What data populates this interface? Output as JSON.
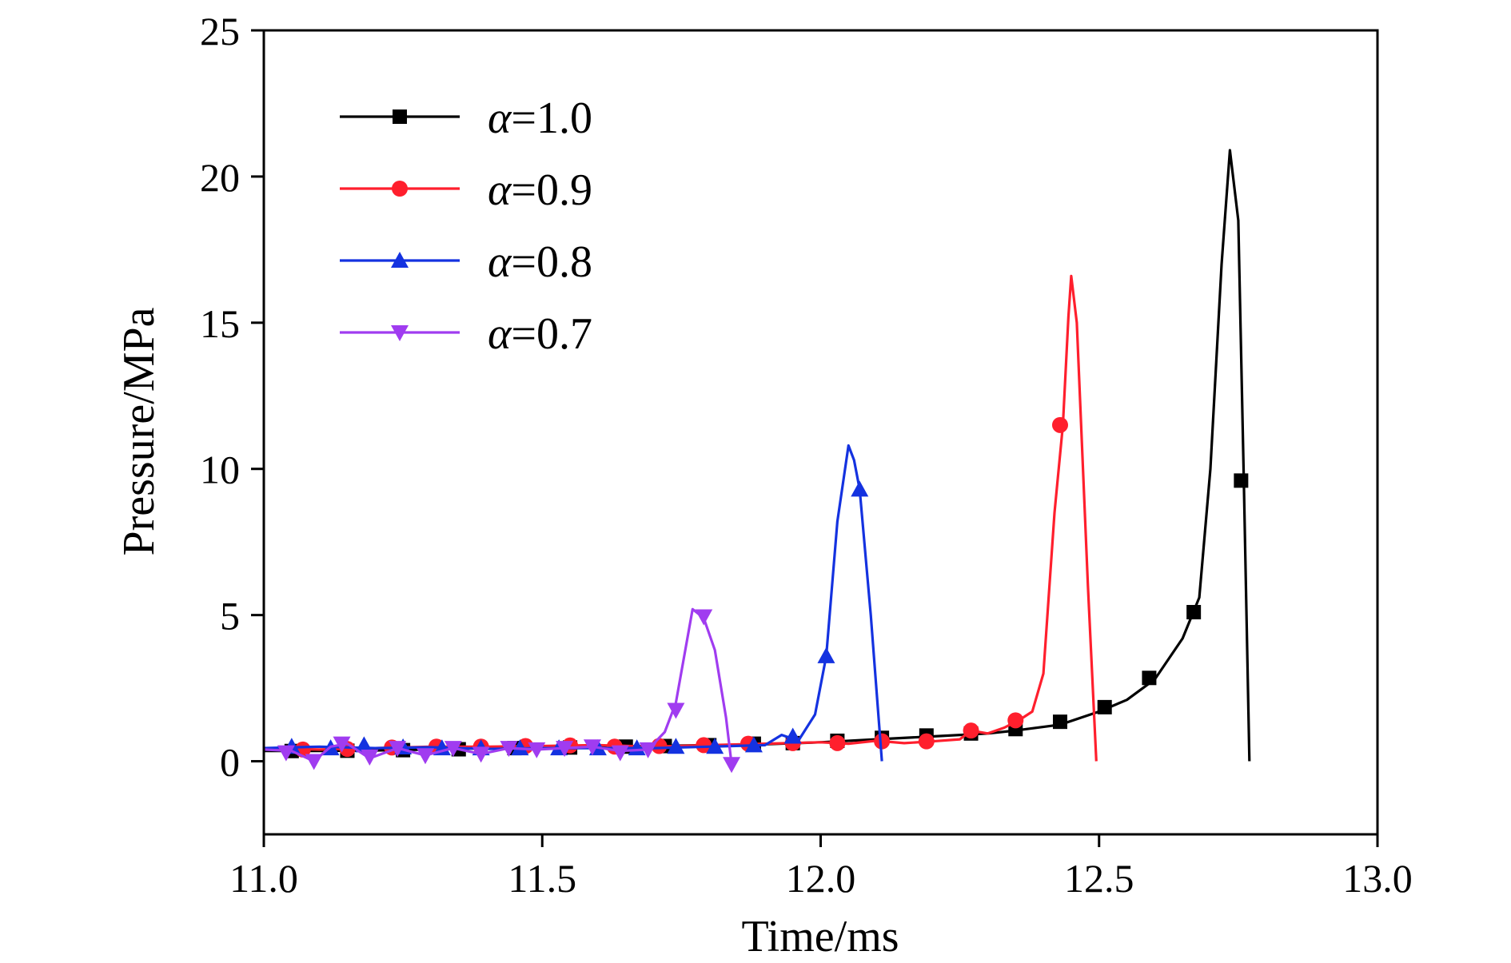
{
  "chart_data": {
    "type": "line",
    "xlabel": "Time/ms",
    "ylabel": "Pressure/MPa",
    "xlim": [
      11.0,
      13.0
    ],
    "ylim": [
      -2.5,
      25
    ],
    "xticks": [
      "11.0",
      "11.5",
      "12.0",
      "12.5",
      "13.0"
    ],
    "yticks": [
      "0",
      "5",
      "10",
      "15",
      "20",
      "25"
    ],
    "legend_position": "top-left",
    "grid": false,
    "series": [
      {
        "name": "α=1.0",
        "color": "#000000",
        "marker": "square",
        "line": [
          [
            11.0,
            0.35
          ],
          [
            11.1,
            0.35
          ],
          [
            11.2,
            0.37
          ],
          [
            11.3,
            0.4
          ],
          [
            11.4,
            0.45
          ],
          [
            11.5,
            0.48
          ],
          [
            11.6,
            0.5
          ],
          [
            11.7,
            0.52
          ],
          [
            11.8,
            0.55
          ],
          [
            11.9,
            0.58
          ],
          [
            12.0,
            0.65
          ],
          [
            12.1,
            0.75
          ],
          [
            12.2,
            0.85
          ],
          [
            12.3,
            0.95
          ],
          [
            12.35,
            1.05
          ],
          [
            12.43,
            1.25
          ],
          [
            12.5,
            1.7
          ],
          [
            12.55,
            2.1
          ],
          [
            12.6,
            2.8
          ],
          [
            12.65,
            4.2
          ],
          [
            12.68,
            5.6
          ],
          [
            12.7,
            10.0
          ],
          [
            12.72,
            17.0
          ],
          [
            12.735,
            20.9
          ],
          [
            12.75,
            18.5
          ],
          [
            12.76,
            9.6
          ],
          [
            12.77,
            0.0
          ]
        ],
        "markers": [
          [
            11.05,
            0.35
          ],
          [
            11.15,
            0.36
          ],
          [
            11.25,
            0.38
          ],
          [
            11.35,
            0.41
          ],
          [
            11.45,
            0.45
          ],
          [
            11.55,
            0.47
          ],
          [
            11.65,
            0.5
          ],
          [
            11.72,
            0.52
          ],
          [
            11.8,
            0.55
          ],
          [
            11.88,
            0.6
          ],
          [
            11.95,
            0.62
          ],
          [
            12.03,
            0.7
          ],
          [
            12.11,
            0.8
          ],
          [
            12.19,
            0.88
          ],
          [
            12.27,
            0.95
          ],
          [
            12.35,
            1.1
          ],
          [
            12.43,
            1.35
          ],
          [
            12.51,
            1.85
          ],
          [
            12.59,
            2.85
          ],
          [
            12.67,
            5.1
          ],
          [
            12.755,
            9.6
          ]
        ]
      },
      {
        "name": "α=0.9",
        "color": "#ff1f2d",
        "marker": "circle",
        "line": [
          [
            11.0,
            0.45
          ],
          [
            11.1,
            0.4
          ],
          [
            11.2,
            0.45
          ],
          [
            11.3,
            0.5
          ],
          [
            11.4,
            0.5
          ],
          [
            11.5,
            0.52
          ],
          [
            11.6,
            0.55
          ],
          [
            11.7,
            0.5
          ],
          [
            11.8,
            0.55
          ],
          [
            11.9,
            0.6
          ],
          [
            12.0,
            0.65
          ],
          [
            12.05,
            0.6
          ],
          [
            12.1,
            0.7
          ],
          [
            12.15,
            0.62
          ],
          [
            12.2,
            0.68
          ],
          [
            12.25,
            0.75
          ],
          [
            12.27,
            1.05
          ],
          [
            12.3,
            0.95
          ],
          [
            12.33,
            1.15
          ],
          [
            12.36,
            1.45
          ],
          [
            12.38,
            1.7
          ],
          [
            12.4,
            3.0
          ],
          [
            12.42,
            8.5
          ],
          [
            12.435,
            11.5
          ],
          [
            12.445,
            15.2
          ],
          [
            12.45,
            16.6
          ],
          [
            12.46,
            15.0
          ],
          [
            12.48,
            6.0
          ],
          [
            12.495,
            0.0
          ]
        ],
        "markers": [
          [
            11.07,
            0.4
          ],
          [
            11.15,
            0.42
          ],
          [
            11.23,
            0.47
          ],
          [
            11.31,
            0.5
          ],
          [
            11.39,
            0.5
          ],
          [
            11.47,
            0.52
          ],
          [
            11.55,
            0.54
          ],
          [
            11.63,
            0.5
          ],
          [
            11.71,
            0.52
          ],
          [
            11.79,
            0.55
          ],
          [
            11.87,
            0.6
          ],
          [
            11.95,
            0.62
          ],
          [
            12.03,
            0.62
          ],
          [
            12.11,
            0.68
          ],
          [
            12.19,
            0.68
          ],
          [
            12.27,
            1.05
          ],
          [
            12.35,
            1.4
          ],
          [
            12.43,
            11.5
          ]
        ]
      },
      {
        "name": "α=0.8",
        "color": "#1432e0",
        "marker": "triangle-up",
        "line": [
          [
            11.0,
            0.45
          ],
          [
            11.1,
            0.5
          ],
          [
            11.2,
            0.45
          ],
          [
            11.3,
            0.48
          ],
          [
            11.4,
            0.42
          ],
          [
            11.5,
            0.45
          ],
          [
            11.6,
            0.45
          ],
          [
            11.7,
            0.45
          ],
          [
            11.8,
            0.5
          ],
          [
            11.9,
            0.55
          ],
          [
            11.93,
            0.9
          ],
          [
            11.96,
            0.7
          ],
          [
            11.99,
            1.6
          ],
          [
            12.01,
            3.6
          ],
          [
            12.03,
            8.2
          ],
          [
            12.05,
            10.8
          ],
          [
            12.06,
            10.3
          ],
          [
            12.07,
            9.3
          ],
          [
            12.09,
            5.0
          ],
          [
            12.11,
            0.0
          ]
        ],
        "markers": [
          [
            11.05,
            0.5
          ],
          [
            11.12,
            0.45
          ],
          [
            11.18,
            0.55
          ],
          [
            11.25,
            0.48
          ],
          [
            11.32,
            0.45
          ],
          [
            11.39,
            0.45
          ],
          [
            11.46,
            0.45
          ],
          [
            11.53,
            0.45
          ],
          [
            11.6,
            0.45
          ],
          [
            11.67,
            0.45
          ],
          [
            11.74,
            0.5
          ],
          [
            11.81,
            0.5
          ],
          [
            11.88,
            0.55
          ],
          [
            11.95,
            0.85
          ],
          [
            12.01,
            3.6
          ],
          [
            12.07,
            9.3
          ]
        ]
      },
      {
        "name": "α=0.7",
        "color": "#a03cf0",
        "marker": "triangle-down",
        "line": [
          [
            11.0,
            0.4
          ],
          [
            11.05,
            0.35
          ],
          [
            11.09,
            0.0
          ],
          [
            11.12,
            0.5
          ],
          [
            11.15,
            0.6
          ],
          [
            11.19,
            0.1
          ],
          [
            11.24,
            0.45
          ],
          [
            11.29,
            0.2
          ],
          [
            11.34,
            0.45
          ],
          [
            11.39,
            0.25
          ],
          [
            11.44,
            0.45
          ],
          [
            11.49,
            0.4
          ],
          [
            11.54,
            0.45
          ],
          [
            11.59,
            0.5
          ],
          [
            11.64,
            0.35
          ],
          [
            11.69,
            0.4
          ],
          [
            11.72,
            1.0
          ],
          [
            11.74,
            2.0
          ],
          [
            11.77,
            5.2
          ],
          [
            11.79,
            4.9
          ],
          [
            11.81,
            3.8
          ],
          [
            11.83,
            1.5
          ],
          [
            11.84,
            -0.1
          ]
        ],
        "markers": [
          [
            11.04,
            0.3
          ],
          [
            11.09,
            0.0
          ],
          [
            11.14,
            0.6
          ],
          [
            11.19,
            0.15
          ],
          [
            11.24,
            0.45
          ],
          [
            11.29,
            0.2
          ],
          [
            11.34,
            0.45
          ],
          [
            11.39,
            0.25
          ],
          [
            11.44,
            0.45
          ],
          [
            11.49,
            0.4
          ],
          [
            11.54,
            0.45
          ],
          [
            11.59,
            0.5
          ],
          [
            11.64,
            0.3
          ],
          [
            11.69,
            0.4
          ],
          [
            11.74,
            1.75
          ],
          [
            11.79,
            4.95
          ],
          [
            11.84,
            -0.1
          ]
        ]
      }
    ]
  }
}
